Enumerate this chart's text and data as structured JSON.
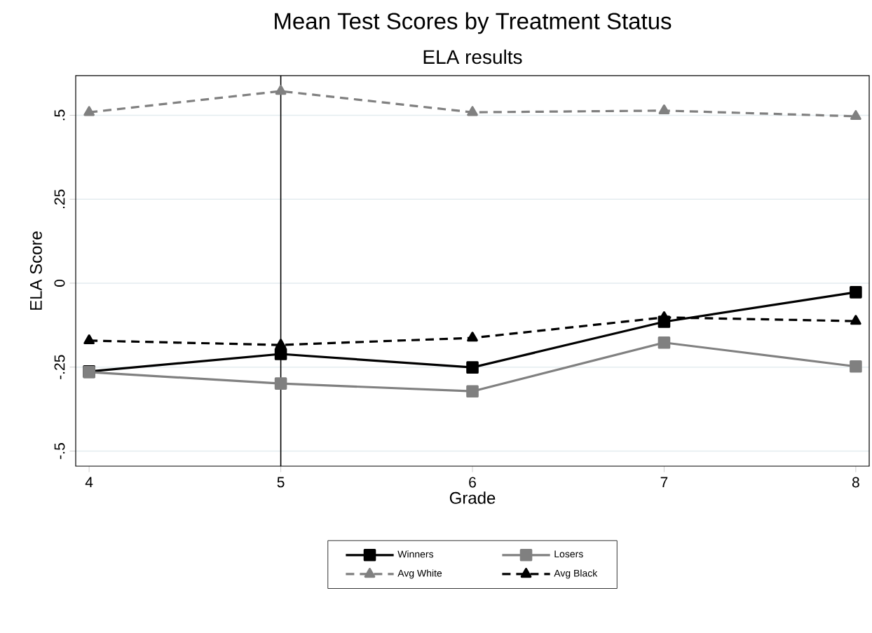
{
  "chart_data": {
    "type": "line",
    "title": "Mean Test Scores by Treatment Status",
    "subtitle": "ELA results",
    "xlabel": "Grade",
    "ylabel": "ELA Score",
    "x": [
      4,
      5,
      6,
      7,
      8
    ],
    "xlim": [
      3.93,
      8.07
    ],
    "ylim": [
      -0.545,
      0.618
    ],
    "xticks": [
      4,
      5,
      6,
      7,
      8
    ],
    "yticks": [
      {
        "value": -0.5,
        "label": "-.5"
      },
      {
        "value": -0.25,
        "label": "-.25"
      },
      0,
      {
        "value": 0.25,
        "label": ".25"
      },
      {
        "value": 0.5,
        "label": ".5"
      }
    ],
    "grid": "y",
    "legend": "bottom",
    "series": [
      {
        "name": "Winners",
        "color": "#000000",
        "marker": "square",
        "line_style": "solid",
        "values": [
          -0.263,
          -0.211,
          -0.251,
          -0.115,
          -0.027
        ]
      },
      {
        "name": "Losers",
        "color": "#808080",
        "marker": "square",
        "line_style": "solid",
        "values": [
          -0.265,
          -0.299,
          -0.322,
          -0.177,
          -0.248
        ]
      },
      {
        "name": "Avg White",
        "color": "#808080",
        "marker": "triangle",
        "line_style": "dashed",
        "values": [
          0.509,
          0.572,
          0.509,
          0.514,
          0.497
        ]
      },
      {
        "name": "Avg Black",
        "color": "#000000",
        "marker": "triangle",
        "line_style": "dashed",
        "values": [
          -0.171,
          -0.184,
          -0.163,
          -0.102,
          -0.113
        ]
      }
    ],
    "ref_lines": [
      {
        "axis": "x",
        "value": 5,
        "color": "#000000"
      }
    ]
  }
}
